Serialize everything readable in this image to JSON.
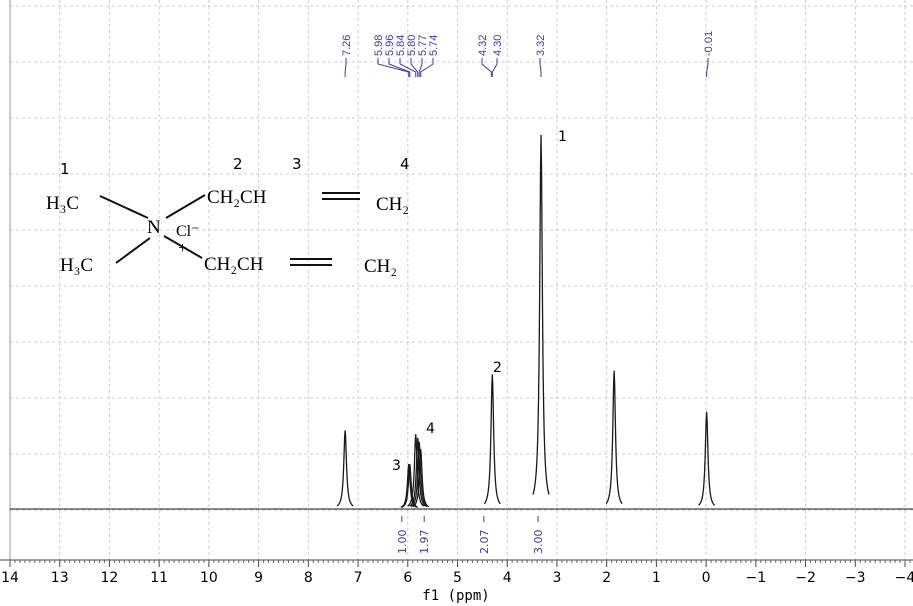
{
  "chart_data": {
    "type": "nmr",
    "x_label": "f1 (ppm)",
    "xlim": [
      14,
      -4
    ],
    "xticks": [
      14,
      13,
      12,
      11,
      10,
      9,
      8,
      7,
      6,
      5,
      4,
      3,
      2,
      1,
      0,
      {
        "value": -1,
        "label": "−1"
      },
      {
        "value": -2,
        "label": "−2"
      },
      {
        "value": -3,
        "label": "−3"
      },
      {
        "value": -4,
        "label": "−4"
      }
    ],
    "grid": true,
    "color": "#1a1a1a",
    "peaks": {
      "x": [
        7.26,
        5.98,
        5.96,
        5.84,
        5.8,
        5.77,
        5.74,
        4.3,
        3.32,
        1.85,
        -0.01
      ],
      "values": [
        21,
        12,
        12,
        20,
        19,
        18,
        16,
        36,
        100,
        37,
        26
      ]
    },
    "peak_labels": [
      {
        "value": 7.26,
        "label": "7.26"
      },
      {
        "value": 5.98,
        "label": "5.98"
      },
      {
        "value": 5.96,
        "label": "5.96"
      },
      {
        "value": 5.84,
        "label": "5.84"
      },
      {
        "value": 5.8,
        "label": "5.80"
      },
      {
        "value": 5.77,
        "label": "5.77"
      },
      {
        "value": 5.74,
        "label": "5.74"
      },
      {
        "value": 4.32,
        "label": "4.32"
      },
      {
        "value": 4.3,
        "label": "4.30"
      },
      {
        "value": 3.32,
        "label": "3.32"
      },
      {
        "value": -0.01,
        "label": "-0.01"
      }
    ],
    "integrals": [
      {
        "value": 1.0,
        "label": "1.00",
        "ppm": 6.12
      },
      {
        "value": 1.97,
        "label": "1.97",
        "ppm": 5.67
      },
      {
        "value": 2.07,
        "label": "2.07",
        "ppm": 4.47
      },
      {
        "value": 3.0,
        "label": "3.00",
        "ppm": 3.38
      }
    ],
    "peak_annotations": [
      "1",
      "2",
      "3",
      "4"
    ],
    "label_color": "#3a3ab0"
  },
  "structure": {
    "numbers": [
      "1",
      "2",
      "3",
      "4"
    ],
    "groups": [
      "H₃C",
      "CH₂CH",
      "CH₂",
      "N",
      "Cl⁻",
      "+",
      "H₃C",
      "CH₂CH",
      "CH₂"
    ]
  }
}
